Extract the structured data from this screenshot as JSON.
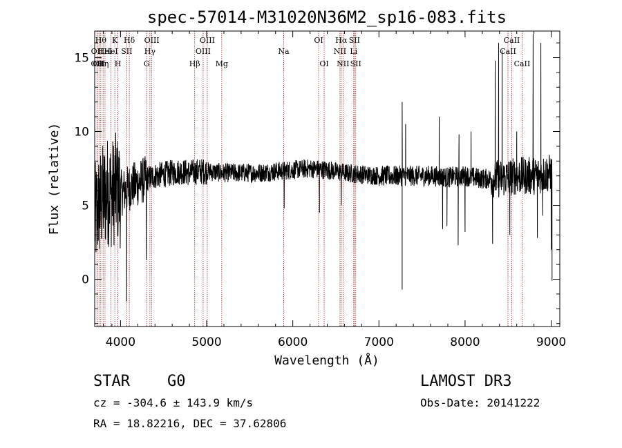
{
  "chart_data": {
    "type": "line",
    "title": "spec-57014-M31020N36M2_sp16-083.fits",
    "xlabel": "Wavelength (Å)",
    "ylabel": "Flux (relative)",
    "xlim": [
      3700,
      9100
    ],
    "ylim": [
      -3.2,
      16.8
    ],
    "x_ticks": [
      4000,
      5000,
      6000,
      7000,
      8000,
      9000
    ],
    "y_ticks": [
      0,
      5,
      10,
      15
    ],
    "spectrum_anchors": {
      "x": [
        3700,
        3750,
        3800,
        3850,
        3900,
        3950,
        4000,
        4100,
        4200,
        4300,
        4400,
        4500,
        4600,
        4700,
        4800,
        4900,
        5000,
        5200,
        5400,
        5600,
        5800,
        6000,
        6200,
        6400,
        6600,
        6800,
        7000,
        7200,
        7400,
        7600,
        7800,
        8000,
        8200,
        8400,
        8600,
        8800,
        9000
      ],
      "y": [
        4.0,
        5.0,
        5.5,
        6.0,
        5.8,
        6.2,
        5.8,
        6.2,
        6.5,
        6.8,
        7.0,
        7.1,
        7.2,
        7.3,
        7.2,
        7.3,
        7.3,
        7.2,
        7.2,
        7.2,
        7.3,
        7.4,
        7.5,
        7.4,
        7.2,
        7.1,
        7.0,
        7.0,
        7.0,
        7.0,
        6.9,
        7.0,
        6.8,
        6.8,
        7.0,
        7.0,
        7.2
      ]
    },
    "spikes": [
      {
        "x": 7270,
        "y": -0.7
      },
      {
        "x": 7270,
        "y": 12.0
      },
      {
        "x": 7310,
        "y": 10.5
      },
      {
        "x": 7700,
        "y": 11.0
      },
      {
        "x": 7740,
        "y": 3.4
      },
      {
        "x": 7790,
        "y": 3.6
      },
      {
        "x": 7920,
        "y": 2.3
      },
      {
        "x": 7930,
        "y": 9.8
      },
      {
        "x": 8000,
        "y": 3.2
      },
      {
        "x": 8070,
        "y": 10.0
      },
      {
        "x": 8320,
        "y": 2.4
      },
      {
        "x": 8350,
        "y": 14.8
      },
      {
        "x": 8390,
        "y": 16.0
      },
      {
        "x": 8430,
        "y": 15.5
      },
      {
        "x": 8520,
        "y": 3.0
      },
      {
        "x": 8600,
        "y": 10.0
      },
      {
        "x": 8790,
        "y": 16.6
      },
      {
        "x": 8840,
        "y": 2.8
      },
      {
        "x": 8880,
        "y": 16.0
      },
      {
        "x": 8900,
        "y": 4.3
      },
      {
        "x": 9000,
        "y": 2.0
      },
      {
        "x": 9010,
        "y": -0.1
      },
      {
        "x": 4070,
        "y": -1.5
      },
      {
        "x": 4300,
        "y": 1.3
      },
      {
        "x": 5900,
        "y": 4.8
      },
      {
        "x": 6310,
        "y": 4.5
      },
      {
        "x": 6563,
        "y": 5.0
      }
    ],
    "lines": [
      {
        "x": 3727,
        "label": "OII",
        "row": 2
      },
      {
        "x": 3750,
        "label": "OII",
        "row": 2
      },
      {
        "x": 3728,
        "label": "OII",
        "row": 1
      },
      {
        "x": 3771,
        "label": "Hθ",
        "row": 0
      },
      {
        "x": 3798,
        "label": "Hη",
        "row": 2
      },
      {
        "x": 3820,
        "label": "HeI",
        "row": 1
      },
      {
        "x": 3889,
        "label": "HeI",
        "row": 1
      },
      {
        "x": 3934,
        "label": "K",
        "row": 0
      },
      {
        "x": 3969,
        "label": "H",
        "row": 2
      },
      {
        "x": 4072,
        "label": "SII",
        "row": 1
      },
      {
        "x": 4102,
        "label": "Hδ",
        "row": 0
      },
      {
        "x": 4304,
        "label": "G",
        "row": 2
      },
      {
        "x": 4341,
        "label": "Hγ",
        "row": 1
      },
      {
        "x": 4363,
        "label": "OIII",
        "row": 0
      },
      {
        "x": 4861,
        "label": "Hβ",
        "row": 2
      },
      {
        "x": 4959,
        "label": "OIII",
        "row": 1
      },
      {
        "x": 5007,
        "label": "OIII",
        "row": 0
      },
      {
        "x": 5175,
        "label": "Mg",
        "row": 2
      },
      {
        "x": 5894,
        "label": "Na",
        "row": 1
      },
      {
        "x": 6300,
        "label": "OI",
        "row": 0
      },
      {
        "x": 6364,
        "label": "OI",
        "row": 2
      },
      {
        "x": 6548,
        "label": "NII",
        "row": 1
      },
      {
        "x": 6563,
        "label": "Hα",
        "row": 0
      },
      {
        "x": 6583,
        "label": "NII",
        "row": 2
      },
      {
        "x": 6707,
        "label": "Li",
        "row": 1
      },
      {
        "x": 6716,
        "label": "SII",
        "row": 0
      },
      {
        "x": 6731,
        "label": "SII",
        "row": 2
      },
      {
        "x": 8498,
        "label": "CaII",
        "row": 1
      },
      {
        "x": 8542,
        "label": "CaII",
        "row": 0
      },
      {
        "x": 8662,
        "label": "CaII",
        "row": 2
      }
    ]
  },
  "info": {
    "class_label": "STAR",
    "subclass": "G0",
    "survey": "LAMOST DR3",
    "cz_line": "cz = -304.6 ± 143.9 km/s",
    "obs_date": "Obs-Date: 20141222",
    "coords": "RA =  18.82216, DEC =  37.62806"
  },
  "colors": {
    "line_marker": "#b02020",
    "spectrum": "#000000",
    "axes": "#000000"
  }
}
